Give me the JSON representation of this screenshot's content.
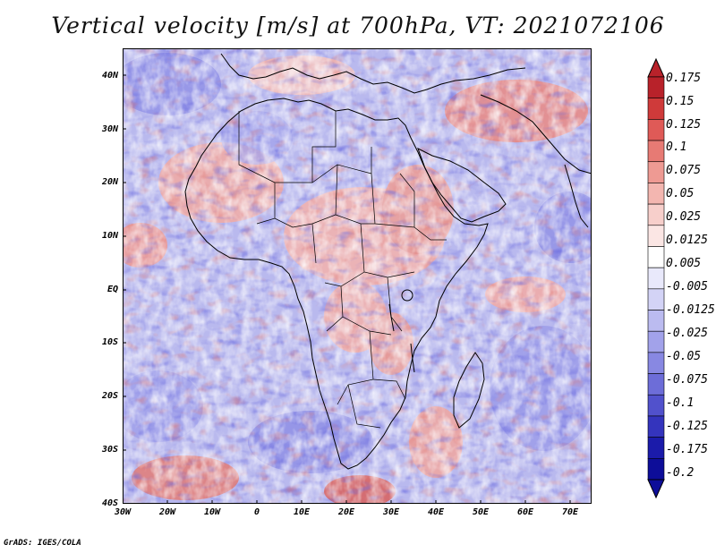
{
  "title": "Vertical velocity [m/s] at 700hPa, VT: 2021072106",
  "lat_labels": [
    "40N",
    "30N",
    "20N",
    "10N",
    "EQ",
    "10S",
    "20S",
    "30S",
    "40S"
  ],
  "lon_labels": [
    "30W",
    "20W",
    "10W",
    "0",
    "10E",
    "20E",
    "30E",
    "40E",
    "50E",
    "60E",
    "70E"
  ],
  "colorbar_labels": [
    "0.175",
    "0.15",
    "0.125",
    "0.1",
    "0.075",
    "0.05",
    "0.025",
    "0.0125",
    "0.005",
    "-0.005",
    "-0.0125",
    "-0.025",
    "-0.05",
    "-0.075",
    "-0.1",
    "-0.125",
    "-0.175",
    "-0.2"
  ],
  "colorbar_colors": [
    "#b8222a",
    "#cf3a3a",
    "#df5a57",
    "#e77a74",
    "#ee9a93",
    "#f3b6b0",
    "#f7cfcb",
    "#fbe6e4",
    "#ffffff",
    "#e9e9fb",
    "#d3d3f6",
    "#bbbbf0",
    "#a2a2ea",
    "#8888e2",
    "#6d6dd8",
    "#5151cc",
    "#3434bd",
    "#1b1baa",
    "#0d0d99"
  ],
  "credit": "GrADS: IGES/COLA",
  "map_extent": {
    "lon_min": -30,
    "lon_max": 75,
    "lat_min": -40,
    "lat_max": 45
  },
  "field": "vertical velocity",
  "level": "700hPa"
}
